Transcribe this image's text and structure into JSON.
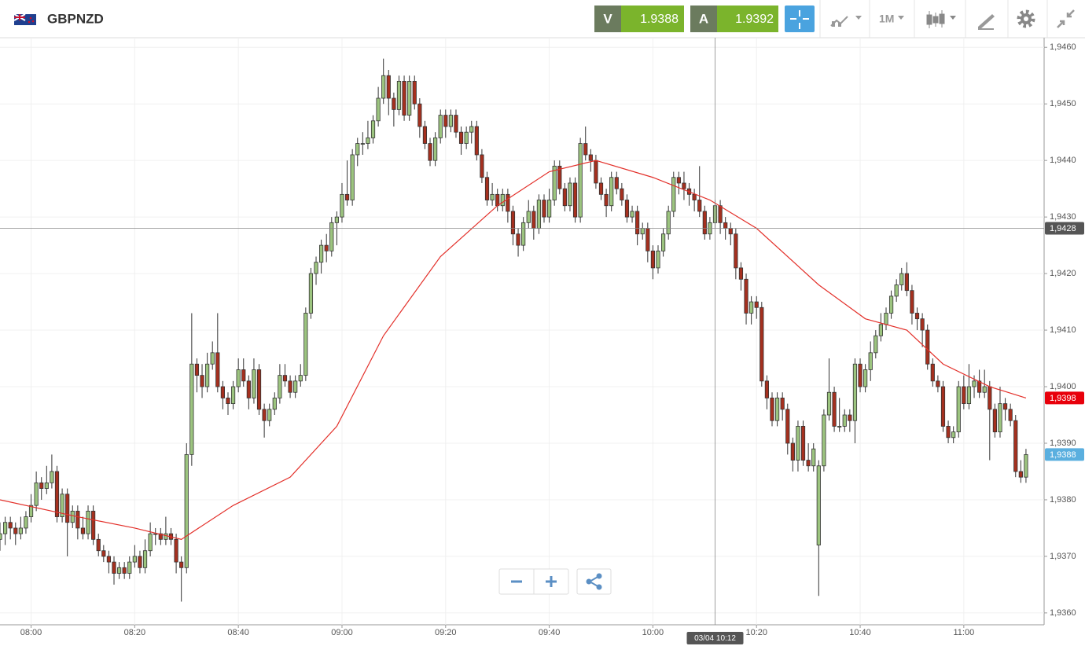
{
  "header": {
    "symbol": "GBPNZD",
    "sell": {
      "label": "V",
      "price": "1.9388"
    },
    "buy": {
      "label": "A",
      "price": "1.9392"
    },
    "timeframe": "1M"
  },
  "chart_data": {
    "type": "candlestick",
    "colors": {
      "up": "#9cc47f",
      "down": "#a5301f"
    },
    "grid": true,
    "xlim": [
      0,
      201.5
    ],
    "ylim": [
      1.93579,
      1.94617
    ],
    "xticks": [
      {
        "value": 6,
        "label": "08:00"
      },
      {
        "value": 26,
        "label": "08:20"
      },
      {
        "value": 46,
        "label": "08:40"
      },
      {
        "value": 66,
        "label": "09:00"
      },
      {
        "value": 86,
        "label": "09:20"
      },
      {
        "value": 106,
        "label": "09:40"
      },
      {
        "value": 126,
        "label": "10:00"
      },
      {
        "value": 146,
        "label": "10:20"
      },
      {
        "value": 166,
        "label": "10:40"
      },
      {
        "value": 186,
        "label": "11:00"
      }
    ],
    "yticks": [
      {
        "value": 1.936,
        "label": "1,9360"
      },
      {
        "value": 1.937,
        "label": "1,9370"
      },
      {
        "value": 1.938,
        "label": "1,9380"
      },
      {
        "value": 1.939,
        "label": "1,9390"
      },
      {
        "value": 1.94,
        "label": "1,9400"
      },
      {
        "value": 1.941,
        "label": "1,9410"
      },
      {
        "value": 1.942,
        "label": "1,9420"
      },
      {
        "value": 1.943,
        "label": "1,9430"
      },
      {
        "value": 1.944,
        "label": "1,9440"
      },
      {
        "value": 1.945,
        "label": "1,9450"
      },
      {
        "value": 1.946,
        "label": "1,9460"
      }
    ],
    "ohlc": [
      [
        1.9373,
        1.9376,
        1.9371,
        1.9374
      ],
      [
        1.9374,
        1.9377,
        1.9372,
        1.9376
      ],
      [
        1.9376,
        1.9377,
        1.9373,
        1.9375
      ],
      [
        1.9375,
        1.9376,
        1.9372,
        1.9374
      ],
      [
        1.9374,
        1.9377,
        1.9373,
        1.9375
      ],
      [
        1.9375,
        1.9378,
        1.9374,
        1.9377
      ],
      [
        1.9377,
        1.9381,
        1.9376,
        1.9379
      ],
      [
        1.9379,
        1.9385,
        1.9378,
        1.9383
      ],
      [
        1.9383,
        1.9384,
        1.938,
        1.9382
      ],
      [
        1.9382,
        1.9386,
        1.9381,
        1.9383
      ],
      [
        1.9383,
        1.9388,
        1.9382,
        1.9385
      ],
      [
        1.9385,
        1.9386,
        1.9376,
        1.9377
      ],
      [
        1.9377,
        1.9382,
        1.9376,
        1.9381
      ],
      [
        1.9381,
        1.9382,
        1.937,
        1.9376
      ],
      [
        1.9376,
        1.9379,
        1.9375,
        1.9378
      ],
      [
        1.9378,
        1.9379,
        1.9373,
        1.9375
      ],
      [
        1.9375,
        1.9377,
        1.9373,
        1.9374
      ],
      [
        1.9374,
        1.9379,
        1.9373,
        1.9378
      ],
      [
        1.9378,
        1.9379,
        1.9372,
        1.9373
      ],
      [
        1.9373,
        1.9374,
        1.937,
        1.9371
      ],
      [
        1.9371,
        1.9372,
        1.9369,
        1.937
      ],
      [
        1.937,
        1.9371,
        1.9367,
        1.9369
      ],
      [
        1.9369,
        1.937,
        1.9365,
        1.9367
      ],
      [
        1.9367,
        1.9369,
        1.9366,
        1.9368
      ],
      [
        1.9368,
        1.9369,
        1.9366,
        1.9367
      ],
      [
        1.9367,
        1.937,
        1.9366,
        1.9369
      ],
      [
        1.9369,
        1.9372,
        1.9368,
        1.937
      ],
      [
        1.937,
        1.9371,
        1.9367,
        1.9368
      ],
      [
        1.9368,
        1.9373,
        1.9367,
        1.9371
      ],
      [
        1.9371,
        1.9376,
        1.937,
        1.9374
      ],
      [
        1.9374,
        1.9375,
        1.9372,
        1.9374
      ],
      [
        1.9374,
        1.9375,
        1.9372,
        1.9373
      ],
      [
        1.9373,
        1.9377,
        1.9372,
        1.9374
      ],
      [
        1.9374,
        1.9375,
        1.9372,
        1.9373
      ],
      [
        1.9373,
        1.9374,
        1.9367,
        1.9369
      ],
      [
        1.9369,
        1.937,
        1.9362,
        1.9368
      ],
      [
        1.9368,
        1.939,
        1.9367,
        1.9388
      ],
      [
        1.9388,
        1.9413,
        1.9386,
        1.9404
      ],
      [
        1.9404,
        1.9405,
        1.9399,
        1.9402
      ],
      [
        1.9402,
        1.9404,
        1.9398,
        1.94
      ],
      [
        1.94,
        1.9406,
        1.9399,
        1.9404
      ],
      [
        1.9404,
        1.9408,
        1.9403,
        1.9406
      ],
      [
        1.9406,
        1.9413,
        1.9399,
        1.94
      ],
      [
        1.94,
        1.9401,
        1.9396,
        1.9398
      ],
      [
        1.9398,
        1.9399,
        1.9395,
        1.9397
      ],
      [
        1.9397,
        1.9401,
        1.9396,
        1.94
      ],
      [
        1.94,
        1.9405,
        1.9399,
        1.9403
      ],
      [
        1.9403,
        1.9405,
        1.94,
        1.9401
      ],
      [
        1.9401,
        1.9402,
        1.9396,
        1.9398
      ],
      [
        1.9398,
        1.9405,
        1.9397,
        1.9403
      ],
      [
        1.9403,
        1.9404,
        1.9395,
        1.9396
      ],
      [
        1.9396,
        1.9397,
        1.9391,
        1.9394
      ],
      [
        1.9394,
        1.9397,
        1.9393,
        1.9396
      ],
      [
        1.9396,
        1.9399,
        1.9395,
        1.9398
      ],
      [
        1.9398,
        1.9404,
        1.9397,
        1.9402
      ],
      [
        1.9402,
        1.9404,
        1.94,
        1.9401
      ],
      [
        1.9401,
        1.9402,
        1.9398,
        1.9399
      ],
      [
        1.9399,
        1.9402,
        1.9398,
        1.9401
      ],
      [
        1.9401,
        1.9404,
        1.94,
        1.9402
      ],
      [
        1.9402,
        1.9414,
        1.9401,
        1.9413
      ],
      [
        1.9413,
        1.9421,
        1.9412,
        1.942
      ],
      [
        1.942,
        1.9423,
        1.9418,
        1.9422
      ],
      [
        1.9422,
        1.9426,
        1.942,
        1.9425
      ],
      [
        1.9425,
        1.9427,
        1.9422,
        1.9424
      ],
      [
        1.9424,
        1.943,
        1.9423,
        1.9429
      ],
      [
        1.9429,
        1.9431,
        1.9425,
        1.943
      ],
      [
        1.943,
        1.9436,
        1.9429,
        1.9434
      ],
      [
        1.9434,
        1.944,
        1.9432,
        1.9433
      ],
      [
        1.9433,
        1.9442,
        1.9432,
        1.9441
      ],
      [
        1.9441,
        1.9444,
        1.9439,
        1.9443
      ],
      [
        1.9443,
        1.9445,
        1.9441,
        1.9443
      ],
      [
        1.9443,
        1.9447,
        1.9442,
        1.9444
      ],
      [
        1.9444,
        1.9448,
        1.9443,
        1.9447
      ],
      [
        1.9447,
        1.9453,
        1.9446,
        1.9451
      ],
      [
        1.9451,
        1.9458,
        1.945,
        1.9455
      ],
      [
        1.9455,
        1.9456,
        1.9448,
        1.9451
      ],
      [
        1.9451,
        1.9452,
        1.9446,
        1.9449
      ],
      [
        1.9449,
        1.9455,
        1.9448,
        1.9454
      ],
      [
        1.9454,
        1.9455,
        1.9447,
        1.9448
      ],
      [
        1.9448,
        1.9455,
        1.9447,
        1.9454
      ],
      [
        1.9454,
        1.9455,
        1.9449,
        1.945
      ],
      [
        1.945,
        1.9451,
        1.9444,
        1.9446
      ],
      [
        1.9446,
        1.9447,
        1.9442,
        1.9443
      ],
      [
        1.9443,
        1.9444,
        1.9439,
        1.944
      ],
      [
        1.944,
        1.9445,
        1.9439,
        1.9444
      ],
      [
        1.9444,
        1.9449,
        1.9443,
        1.9448
      ],
      [
        1.9448,
        1.9449,
        1.9444,
        1.9446
      ],
      [
        1.9446,
        1.9449,
        1.9445,
        1.9448
      ],
      [
        1.9448,
        1.9449,
        1.9444,
        1.9445
      ],
      [
        1.9445,
        1.9446,
        1.9441,
        1.9443
      ],
      [
        1.9443,
        1.9446,
        1.9442,
        1.9445
      ],
      [
        1.9445,
        1.9447,
        1.9443,
        1.9446
      ],
      [
        1.9446,
        1.9447,
        1.944,
        1.9441
      ],
      [
        1.9441,
        1.9442,
        1.9436,
        1.9437
      ],
      [
        1.9437,
        1.9438,
        1.9432,
        1.9433
      ],
      [
        1.9433,
        1.9436,
        1.9432,
        1.9434
      ],
      [
        1.9434,
        1.9435,
        1.9431,
        1.9432
      ],
      [
        1.9432,
        1.9435,
        1.9431,
        1.9434
      ],
      [
        1.9434,
        1.9435,
        1.9429,
        1.9431
      ],
      [
        1.9431,
        1.9432,
        1.9425,
        1.9427
      ],
      [
        1.9427,
        1.9428,
        1.9423,
        1.9425
      ],
      [
        1.9425,
        1.943,
        1.9424,
        1.9429
      ],
      [
        1.9429,
        1.9433,
        1.9428,
        1.9431
      ],
      [
        1.9431,
        1.9432,
        1.9426,
        1.9428
      ],
      [
        1.9428,
        1.9434,
        1.9427,
        1.9433
      ],
      [
        1.9433,
        1.9434,
        1.9429,
        1.943
      ],
      [
        1.943,
        1.9435,
        1.9429,
        1.9433
      ],
      [
        1.9433,
        1.944,
        1.9432,
        1.9439
      ],
      [
        1.9439,
        1.944,
        1.9434,
        1.9435
      ],
      [
        1.9435,
        1.9436,
        1.9431,
        1.9432
      ],
      [
        1.9432,
        1.9437,
        1.9431,
        1.9436
      ],
      [
        1.9436,
        1.9437,
        1.9429,
        1.943
      ],
      [
        1.943,
        1.9444,
        1.9429,
        1.9443
      ],
      [
        1.9443,
        1.9446,
        1.944,
        1.9441
      ],
      [
        1.9441,
        1.9442,
        1.9438,
        1.944
      ],
      [
        1.944,
        1.9441,
        1.9435,
        1.9436
      ],
      [
        1.9436,
        1.9437,
        1.9433,
        1.9434
      ],
      [
        1.9434,
        1.9435,
        1.943,
        1.9432
      ],
      [
        1.9432,
        1.9438,
        1.9431,
        1.9437
      ],
      [
        1.9437,
        1.9438,
        1.9434,
        1.9435
      ],
      [
        1.9435,
        1.9436,
        1.9432,
        1.9433
      ],
      [
        1.9433,
        1.9434,
        1.9429,
        1.943
      ],
      [
        1.943,
        1.9432,
        1.9429,
        1.9431
      ],
      [
        1.9431,
        1.9432,
        1.9425,
        1.9427
      ],
      [
        1.9427,
        1.9429,
        1.9426,
        1.9428
      ],
      [
        1.9428,
        1.9429,
        1.9422,
        1.9424
      ],
      [
        1.9424,
        1.9425,
        1.9419,
        1.9421
      ],
      [
        1.9421,
        1.9425,
        1.942,
        1.9424
      ],
      [
        1.9424,
        1.9428,
        1.9423,
        1.9427
      ],
      [
        1.9427,
        1.9432,
        1.9426,
        1.9431
      ],
      [
        1.9431,
        1.9438,
        1.943,
        1.9437
      ],
      [
        1.9437,
        1.9438,
        1.9434,
        1.9436
      ],
      [
        1.9436,
        1.9438,
        1.9433,
        1.9435
      ],
      [
        1.9435,
        1.9436,
        1.9432,
        1.9434
      ],
      [
        1.9434,
        1.9435,
        1.9431,
        1.9433
      ],
      [
        1.9433,
        1.9439,
        1.943,
        1.9431
      ],
      [
        1.9431,
        1.9432,
        1.9426,
        1.9427
      ],
      [
        1.9427,
        1.943,
        1.9426,
        1.9429
      ],
      [
        1.9429,
        1.9433,
        1.9428,
        1.9432
      ],
      [
        1.9432,
        1.9433,
        1.9427,
        1.9429
      ],
      [
        1.9429,
        1.943,
        1.9426,
        1.9428
      ],
      [
        1.9428,
        1.9429,
        1.9425,
        1.9427
      ],
      [
        1.9427,
        1.9428,
        1.9419,
        1.9421
      ],
      [
        1.9421,
        1.9422,
        1.9417,
        1.9419
      ],
      [
        1.9419,
        1.942,
        1.9411,
        1.9413
      ],
      [
        1.9413,
        1.9416,
        1.9411,
        1.9415
      ],
      [
        1.9415,
        1.9416,
        1.9412,
        1.9414
      ],
      [
        1.9414,
        1.9415,
        1.94,
        1.9401
      ],
      [
        1.9401,
        1.9402,
        1.9396,
        1.9398
      ],
      [
        1.9398,
        1.9399,
        1.9393,
        1.9394
      ],
      [
        1.9394,
        1.9399,
        1.9393,
        1.9398
      ],
      [
        1.9398,
        1.9399,
        1.9394,
        1.9396
      ],
      [
        1.9396,
        1.9397,
        1.9388,
        1.939
      ],
      [
        1.939,
        1.9391,
        1.9385,
        1.9387
      ],
      [
        1.9387,
        1.9394,
        1.9385,
        1.9393
      ],
      [
        1.9393,
        1.9394,
        1.9386,
        1.9387
      ],
      [
        1.9387,
        1.939,
        1.9385,
        1.9386
      ],
      [
        1.9386,
        1.939,
        1.9385,
        1.9389
      ],
      [
        1.9372,
        1.9387,
        1.9363,
        1.9386
      ],
      [
        1.9386,
        1.9396,
        1.9385,
        1.9395
      ],
      [
        1.9395,
        1.9405,
        1.9394,
        1.9399
      ],
      [
        1.9399,
        1.94,
        1.9392,
        1.9393
      ],
      [
        1.9393,
        1.9398,
        1.9392,
        1.9393
      ],
      [
        1.9393,
        1.9396,
        1.9392,
        1.9395
      ],
      [
        1.9395,
        1.9396,
        1.9392,
        1.9394
      ],
      [
        1.9394,
        1.9405,
        1.939,
        1.9404
      ],
      [
        1.9404,
        1.9405,
        1.9399,
        1.94
      ],
      [
        1.94,
        1.9404,
        1.9399,
        1.9403
      ],
      [
        1.9403,
        1.9408,
        1.9401,
        1.9406
      ],
      [
        1.9406,
        1.941,
        1.9405,
        1.9409
      ],
      [
        1.9409,
        1.9413,
        1.9408,
        1.9411
      ],
      [
        1.9411,
        1.9414,
        1.941,
        1.9413
      ],
      [
        1.9413,
        1.9417,
        1.9412,
        1.9416
      ],
      [
        1.9416,
        1.9419,
        1.9415,
        1.9418
      ],
      [
        1.9418,
        1.9421,
        1.9417,
        1.942
      ],
      [
        1.942,
        1.9422,
        1.9416,
        1.9417
      ],
      [
        1.9417,
        1.9418,
        1.9411,
        1.9413
      ],
      [
        1.9413,
        1.9414,
        1.941,
        1.9412
      ],
      [
        1.9412,
        1.9413,
        1.9407,
        1.941
      ],
      [
        1.941,
        1.9411,
        1.9403,
        1.9404
      ],
      [
        1.9404,
        1.9405,
        1.94,
        1.9401
      ],
      [
        1.9401,
        1.9402,
        1.9399,
        1.94
      ],
      [
        1.94,
        1.9401,
        1.9392,
        1.9393
      ],
      [
        1.9393,
        1.9394,
        1.939,
        1.9391
      ],
      [
        1.9391,
        1.9393,
        1.939,
        1.9392
      ],
      [
        1.9392,
        1.9401,
        1.9391,
        1.94
      ],
      [
        1.94,
        1.9402,
        1.9396,
        1.9397
      ],
      [
        1.9397,
        1.9404,
        1.9396,
        1.94
      ],
      [
        1.94,
        1.9402,
        1.9398,
        1.9401
      ],
      [
        1.9401,
        1.9403,
        1.9398,
        1.9399
      ],
      [
        1.9399,
        1.9403,
        1.9398,
        1.94
      ],
      [
        1.94,
        1.9401,
        1.9387,
        1.9396
      ],
      [
        1.9396,
        1.9397,
        1.9391,
        1.9392
      ],
      [
        1.9392,
        1.94,
        1.9391,
        1.9397
      ],
      [
        1.9397,
        1.9398,
        1.9394,
        1.9396
      ],
      [
        1.9396,
        1.9397,
        1.9393,
        1.9394
      ],
      [
        1.9394,
        1.9395,
        1.9384,
        1.9385
      ],
      [
        1.9385,
        1.9387,
        1.9383,
        1.9384
      ],
      [
        1.9384,
        1.9389,
        1.9383,
        1.9388
      ]
    ],
    "moving_average": {
      "color": "#e3302a",
      "x": [
        0,
        15,
        26,
        35,
        45,
        56,
        65,
        74,
        85,
        96,
        106,
        115,
        126,
        137,
        146,
        158,
        167,
        175,
        182,
        191,
        198
      ],
      "values": [
        1.938,
        1.9377,
        1.9375,
        1.9373,
        1.9379,
        1.9384,
        1.9393,
        1.9409,
        1.9423,
        1.9432,
        1.9438,
        1.944,
        1.9437,
        1.9433,
        1.9428,
        1.9418,
        1.9412,
        1.941,
        1.9404,
        1.94,
        1.9398
      ]
    },
    "crosshair": {
      "x": 138,
      "x_label": "03/04 10:12",
      "y": 1.9428,
      "y_label": "1,9428"
    },
    "price_markers": [
      {
        "value": 1.9398,
        "label": "1,9398",
        "color": "#e8000b"
      },
      {
        "value": 1.9388,
        "label": "1,9388",
        "color": "#5aafdf"
      }
    ]
  }
}
